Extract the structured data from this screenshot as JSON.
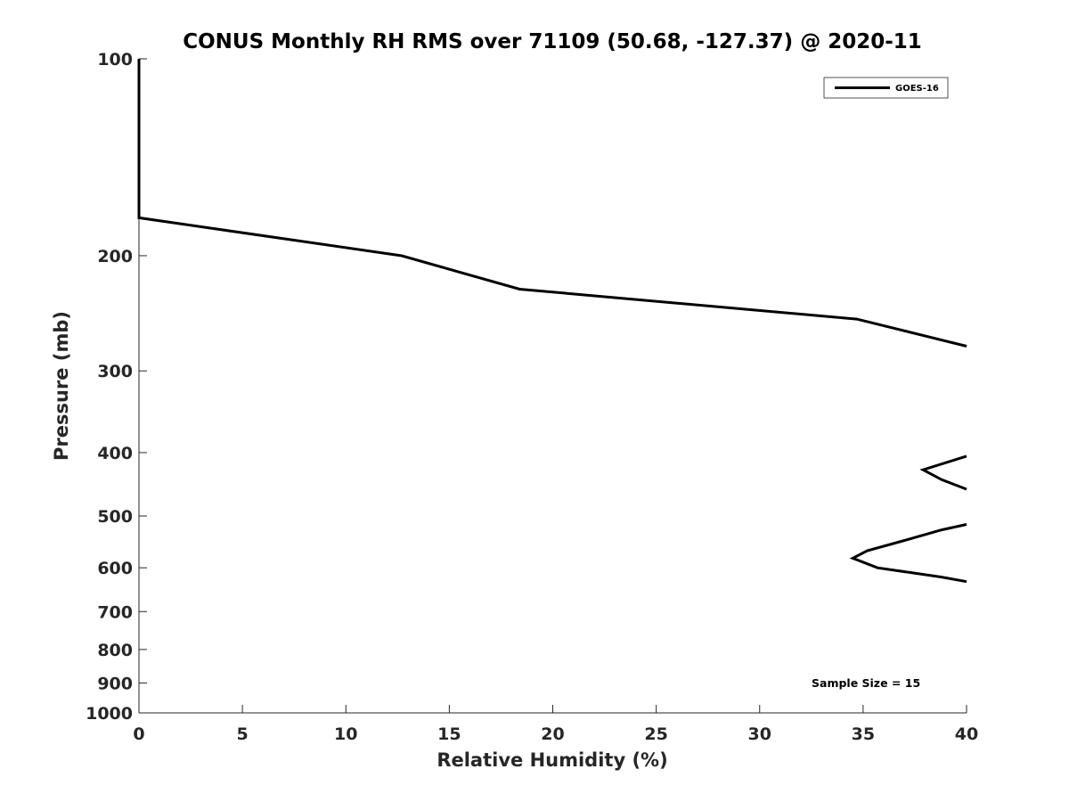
{
  "chart_data": {
    "type": "line",
    "title": "CONUS Monthly RH RMS over 71109 (50.68, -127.37) @ 2020-11",
    "xlabel": "Relative Humidity (%)",
    "ylabel": "Pressure (mb)",
    "xlim": [
      0,
      40
    ],
    "ylim": [
      100,
      1000
    ],
    "yscale": "log",
    "y_reversed": true,
    "xticks": [
      "0",
      "5",
      "10",
      "15",
      "20",
      "25",
      "30",
      "35",
      "40"
    ],
    "yticks": [
      "100",
      "200",
      "300",
      "400",
      "500",
      "600",
      "700",
      "800",
      "900",
      "1000"
    ],
    "grid": false,
    "legend": {
      "position": "top-right",
      "entries": [
        "GOES-16"
      ]
    },
    "annotation": "Sample Size = 15",
    "series": [
      {
        "name": "GOES-16",
        "color": "#000000",
        "segments": [
          [
            [
              0,
              100
            ],
            [
              0,
              175
            ],
            [
              12.7,
              200
            ],
            [
              18.4,
              225
            ],
            [
              34.7,
              250
            ],
            [
              40,
              275
            ]
          ],
          [
            [
              40,
              405
            ],
            [
              37.9,
              425
            ],
            [
              38.8,
              440
            ],
            [
              40,
              455
            ]
          ],
          [
            [
              40,
              515
            ],
            [
              38.8,
              525
            ],
            [
              37.0,
              545
            ],
            [
              35.2,
              565
            ],
            [
              34.5,
              580
            ],
            [
              35.7,
              600
            ],
            [
              38.8,
              620
            ],
            [
              40,
              630
            ]
          ]
        ]
      }
    ]
  }
}
